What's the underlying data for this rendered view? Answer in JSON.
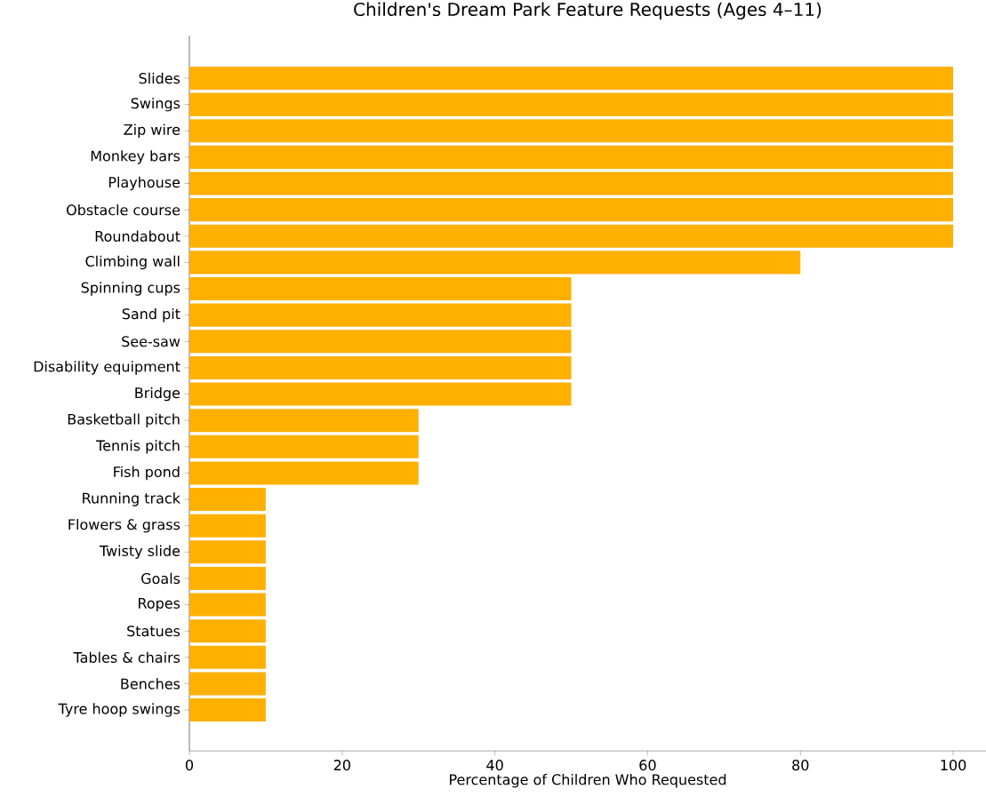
{
  "chart_data": {
    "type": "bar",
    "orientation": "horizontal",
    "title": "Children's Dream Park Feature Requests (Ages 4–11)",
    "xlabel": "Percentage of Children Who Requested",
    "categories": [
      "Slides",
      "Swings",
      "Zip wire",
      "Monkey bars",
      "Playhouse",
      "Obstacle course",
      "Roundabout",
      "Climbing wall",
      "Spinning cups",
      "Sand pit",
      "See-saw",
      "Disability equipment",
      "Bridge",
      "Basketball pitch",
      "Tennis pitch",
      "Fish pond",
      "Running track",
      "Flowers & grass",
      "Twisty slide",
      "Goals",
      "Ropes",
      "Statues",
      "Tables & chairs",
      "Benches",
      "Tyre hoop swings"
    ],
    "values": [
      100,
      100,
      100,
      100,
      100,
      100,
      100,
      80,
      50,
      50,
      50,
      50,
      50,
      30,
      30,
      30,
      10,
      10,
      10,
      10,
      10,
      10,
      10,
      10,
      10
    ],
    "color": "#ffb000",
    "xlim": [
      0,
      104.3
    ],
    "xticks": [
      0,
      20,
      40,
      60,
      80,
      100
    ],
    "grid": false
  }
}
